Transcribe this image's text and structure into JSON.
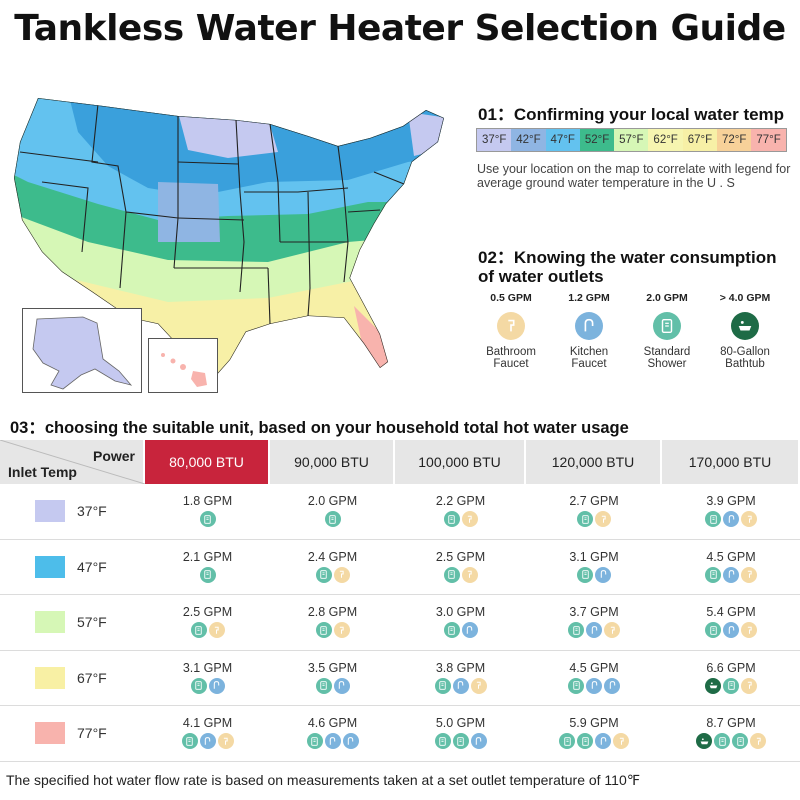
{
  "title": "Tankless Water Heater Selection Guide",
  "section1": {
    "heading": "01：Confirming your local water temp",
    "legend": [
      {
        "label": "37°F",
        "color": "#c5c9f0"
      },
      {
        "label": "42°F",
        "color": "#8fb5e3"
      },
      {
        "label": "47°F",
        "color": "#63c2ef"
      },
      {
        "label": "52°F",
        "color": "#3dbb8c"
      },
      {
        "label": "57°F",
        "color": "#d6f7b6"
      },
      {
        "label": "62°F",
        "color": "#f6f5b0"
      },
      {
        "label": "67°F",
        "color": "#f7f0a6"
      },
      {
        "label": "72°F",
        "color": "#f7d199"
      },
      {
        "label": "77°F",
        "color": "#f8b3ad"
      }
    ],
    "description": "Use your location on the map to correlate with legend for average ground water temperature in the U . S"
  },
  "section2": {
    "heading": "02：Knowing the water consumption of water outlets",
    "outlets": [
      {
        "gpm": "0.5 GPM",
        "label_line1": "Bathroom",
        "label_line2": "Faucet",
        "icon": "bathroom-faucet-icon",
        "color": "#f4d9a4"
      },
      {
        "gpm": "1.2 GPM",
        "label_line1": "Kitchen",
        "label_line2": "Faucet",
        "icon": "kitchen-faucet-icon",
        "color": "#7cb3dd"
      },
      {
        "gpm": "2.0 GPM",
        "label_line1": "Standard",
        "label_line2": "Shower",
        "icon": "shower-icon",
        "color": "#62bfa8"
      },
      {
        "gpm": "> 4.0 GPM",
        "label_line1": "80-Gallon",
        "label_line2": "Bathtub",
        "icon": "bathtub-icon",
        "color": "#1e6b46"
      }
    ]
  },
  "section3": {
    "heading": "03：choosing the suitable unit, based on your household total hot water usage",
    "power_label": "Power",
    "inlet_label": "Inlet Temp",
    "columns": [
      "80,000 BTU",
      "90,000 BTU",
      "100,000 BTU",
      "120,000 BTU",
      "170,000 BTU"
    ],
    "selected_column": 0,
    "rows": [
      {
        "temp": "37°F",
        "color": "#c5c9f0",
        "cells": [
          {
            "gpm": "1.8 GPM",
            "icons": [
              "shower"
            ]
          },
          {
            "gpm": "2.0 GPM",
            "icons": [
              "shower"
            ]
          },
          {
            "gpm": "2.2 GPM",
            "icons": [
              "shower",
              "bath-faucet"
            ]
          },
          {
            "gpm": "2.7 GPM",
            "icons": [
              "shower",
              "bath-faucet"
            ]
          },
          {
            "gpm": "3.9 GPM",
            "icons": [
              "shower",
              "kitchen",
              "bath-faucet"
            ]
          }
        ]
      },
      {
        "temp": "47°F",
        "color": "#4dbdea",
        "cells": [
          {
            "gpm": "2.1 GPM",
            "icons": [
              "shower"
            ]
          },
          {
            "gpm": "2.4 GPM",
            "icons": [
              "shower",
              "bath-faucet"
            ]
          },
          {
            "gpm": "2.5 GPM",
            "icons": [
              "shower",
              "bath-faucet"
            ]
          },
          {
            "gpm": "3.1 GPM",
            "icons": [
              "shower",
              "kitchen"
            ]
          },
          {
            "gpm": "4.5 GPM",
            "icons": [
              "shower",
              "kitchen",
              "bath-faucet"
            ]
          }
        ]
      },
      {
        "temp": "57°F",
        "color": "#d6f7b6",
        "cells": [
          {
            "gpm": "2.5 GPM",
            "icons": [
              "shower",
              "bath-faucet"
            ]
          },
          {
            "gpm": "2.8 GPM",
            "icons": [
              "shower",
              "bath-faucet"
            ]
          },
          {
            "gpm": "3.0 GPM",
            "icons": [
              "shower",
              "kitchen"
            ]
          },
          {
            "gpm": "3.7 GPM",
            "icons": [
              "shower",
              "kitchen",
              "bath-faucet"
            ]
          },
          {
            "gpm": "5.4 GPM",
            "icons": [
              "shower",
              "kitchen",
              "bath-faucet"
            ]
          }
        ]
      },
      {
        "temp": "67°F",
        "color": "#f8f0a4",
        "cells": [
          {
            "gpm": "3.1 GPM",
            "icons": [
              "shower",
              "kitchen"
            ]
          },
          {
            "gpm": "3.5 GPM",
            "icons": [
              "shower",
              "kitchen"
            ]
          },
          {
            "gpm": "3.8 GPM",
            "icons": [
              "shower",
              "kitchen",
              "bath-faucet"
            ]
          },
          {
            "gpm": "4.5 GPM",
            "icons": [
              "shower",
              "kitchen",
              "kitchen"
            ]
          },
          {
            "gpm": "6.6 GPM",
            "icons": [
              "bathtub",
              "shower",
              "bath-faucet"
            ]
          }
        ]
      },
      {
        "temp": "77°F",
        "color": "#f8b3ad",
        "cells": [
          {
            "gpm": "4.1 GPM",
            "icons": [
              "shower",
              "kitchen",
              "bath-faucet"
            ]
          },
          {
            "gpm": "4.6 GPM",
            "icons": [
              "shower",
              "kitchen",
              "kitchen"
            ]
          },
          {
            "gpm": "5.0 GPM",
            "icons": [
              "shower",
              "shower",
              "kitchen"
            ]
          },
          {
            "gpm": "5.9 GPM",
            "icons": [
              "shower",
              "shower",
              "kitchen",
              "bath-faucet"
            ]
          },
          {
            "gpm": "8.7 GPM",
            "icons": [
              "bathtub",
              "shower",
              "shower",
              "bath-faucet"
            ]
          }
        ]
      }
    ]
  },
  "footer": "The specified hot water flow rate is based on measurements taken at a set outlet temperature of 110℉"
}
